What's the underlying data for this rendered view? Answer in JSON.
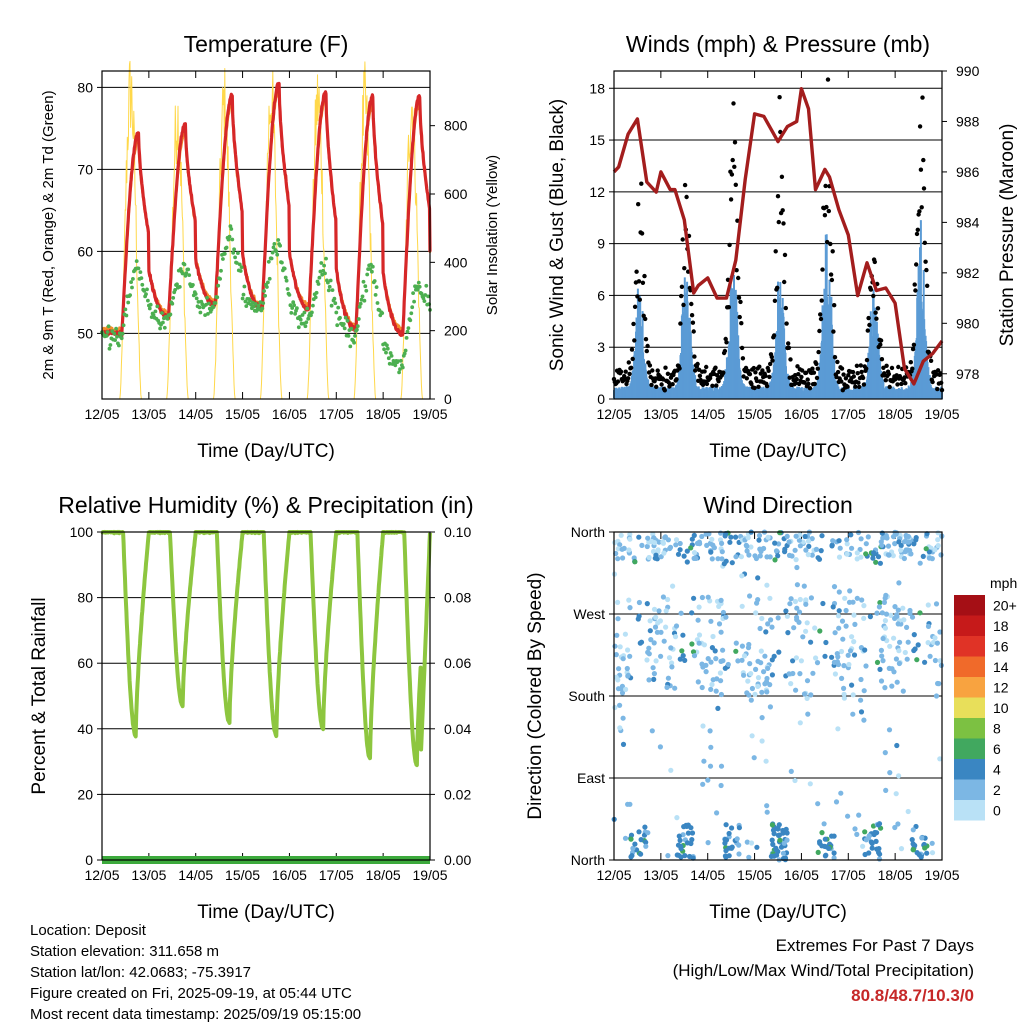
{
  "chart_data": [
    {
      "type": "line",
      "title": "Temperature (F)",
      "xlabel": "Time (Day/UTC)",
      "ylabel": "2m & 9m T (Red, Orange) & 2m Td (Green)",
      "ylabel_right": "Solar Insolation (Yellow)",
      "xticks": [
        "12/05",
        "13/05",
        "14/05",
        "15/05",
        "16/05",
        "17/05",
        "18/05",
        "19/05"
      ],
      "yticks": [
        "50",
        "60",
        "70",
        "80"
      ],
      "yticks_right": [
        "0",
        "200",
        "400",
        "600",
        "800"
      ],
      "ylim": [
        42,
        82
      ],
      "ylim_right": [
        0,
        960
      ],
      "grid": "horizontal",
      "series": [
        {
          "name": "2m T",
          "color": "#d62728",
          "day_highs": [
            74.5,
            75.5,
            79,
            80.5,
            79.5,
            79,
            79
          ],
          "day_lows": [
            49.5,
            52,
            53.5,
            53,
            53,
            50.5,
            50,
            53.5
          ]
        },
        {
          "name": "9m T",
          "color": "#f28e2b",
          "day_highs": [
            73.5,
            74.5,
            78,
            79.5,
            78.5,
            78,
            78
          ],
          "day_lows": [
            50,
            52.5,
            54,
            53.5,
            53.5,
            51,
            50.5,
            54
          ]
        },
        {
          "name": "2m Td",
          "color": "#4caf50",
          "day_highs": [
            58,
            58,
            62,
            61,
            58,
            58,
            56
          ],
          "day_lows": [
            49,
            51.5,
            53,
            53,
            51.5,
            50,
            46,
            52.5
          ]
        },
        {
          "name": "Solar Insolation",
          "color": "#ffd84a",
          "day_peaks": [
            900,
            820,
            860,
            880,
            870,
            860,
            860
          ]
        }
      ]
    },
    {
      "type": "scatter",
      "title": "Winds (mph) & Pressure (mb)",
      "xlabel": "Time (Day/UTC)",
      "ylabel": "Sonic Wind & Gust (Blue, Black)",
      "ylabel_right": "Station Pressure (Maroon)",
      "xticks": [
        "12/05",
        "13/05",
        "14/05",
        "15/05",
        "16/05",
        "17/05",
        "18/05",
        "19/05"
      ],
      "yticks": [
        "0",
        "3",
        "6",
        "9",
        "12",
        "15",
        "18"
      ],
      "yticks_right": [
        "978",
        "980",
        "982",
        "984",
        "986",
        "988",
        "990"
      ],
      "ylim": [
        0,
        19
      ],
      "ylim_right": [
        977,
        990
      ],
      "grid": "horizontal",
      "series": [
        {
          "name": "Sonic Wind",
          "color": "#5b9bd5",
          "day_peaks": [
            6,
            7,
            7.5,
            7.5,
            9,
            6,
            9
          ]
        },
        {
          "name": "Gust",
          "color": "#000000",
          "day_peaks": [
            10,
            12,
            16.5,
            14,
            16,
            8,
            16
          ]
        },
        {
          "name": "Station Pressure",
          "color": "#a31d1d",
          "x": [
            0.0,
            0.1,
            0.3,
            0.5,
            0.7,
            0.9,
            1.0,
            1.2,
            1.3,
            1.5,
            1.7,
            1.8,
            2.0,
            2.2,
            2.4,
            2.6,
            2.8,
            3.0,
            3.2,
            3.5,
            3.7,
            3.9,
            4.0,
            4.15,
            4.3,
            4.5,
            4.6,
            4.8,
            5.0,
            5.2,
            5.4,
            5.6,
            5.8,
            6.0,
            6.2,
            6.4,
            6.6,
            6.8,
            7.0
          ],
          "y": [
            986,
            986.2,
            987.5,
            988.1,
            985.6,
            985.2,
            986.0,
            985.3,
            985.3,
            984.1,
            981.2,
            981.5,
            981.8,
            981.0,
            981.0,
            982.5,
            985.7,
            988.3,
            988.2,
            987.2,
            987.8,
            988.0,
            989.3,
            988.5,
            985.3,
            986.1,
            985.8,
            984.5,
            983.5,
            981.1,
            982.4,
            981.3,
            981.4,
            980.8,
            978.2,
            977.6,
            978.5,
            978.8,
            979.3
          ]
        }
      ]
    },
    {
      "type": "line",
      "title": "Relative Humidity (%) & Precipitation (in)",
      "xlabel": "Time (Day/UTC)",
      "ylabel": "Percent & Total Rainfall",
      "xticks": [
        "12/05",
        "13/05",
        "14/05",
        "15/05",
        "16/05",
        "17/05",
        "18/05",
        "19/05"
      ],
      "yticks": [
        "0",
        "20",
        "40",
        "60",
        "80",
        "100"
      ],
      "yticks_right": [
        "0.00",
        "0.02",
        "0.04",
        "0.06",
        "0.08",
        "0.10"
      ],
      "ylim": [
        0,
        100
      ],
      "ylim_right": [
        0,
        0.1
      ],
      "grid": "horizontal",
      "series": [
        {
          "name": "Relative Humidity",
          "color": "#8dc63f",
          "day_lows": [
            38,
            47,
            42,
            38,
            40,
            31,
            29
          ],
          "daily_high": 100
        },
        {
          "name": "Total Precipitation",
          "color": "#3caa3c",
          "values": [
            0,
            0
          ]
        }
      ]
    },
    {
      "type": "scatter",
      "title": "Wind Direction",
      "xlabel": "Time (Day/UTC)",
      "ylabel": "Direction (Colored By Speed)",
      "xticks": [
        "12/05",
        "13/05",
        "14/05",
        "15/05",
        "16/05",
        "17/05",
        "18/05",
        "19/05"
      ],
      "yticks": [
        "North",
        "East",
        "South",
        "West",
        "North"
      ],
      "ylim": [
        0,
        360
      ],
      "grid": "horizontal",
      "legend": {
        "title": "mph",
        "position": "right",
        "labels": [
          "20+",
          "18",
          "16",
          "14",
          "12",
          "10",
          "8",
          "6",
          "4",
          "2",
          "0"
        ],
        "colors": [
          "#a50f15",
          "#c61a1a",
          "#e03326",
          "#f06a2a",
          "#f8a340",
          "#e8df5a",
          "#7cc142",
          "#41a85f",
          "#3a86c2",
          "#7cb7e4",
          "#b9e1f6"
        ]
      }
    }
  ],
  "footer": {
    "location": "Location: Deposit",
    "elevation": "Station elevation: 311.658 m",
    "latlon": "Station lat/lon: 42.0683; -75.3917",
    "created": "Figure created on Fri, 2025-09-19, at 05:44 UTC",
    "recent": "Most recent data timestamp: 2025/09/19 05:15:00"
  },
  "extremes": {
    "title": "Extremes For Past 7 Days",
    "subtitle": "(High/Low/Max Wind/Total Precipitation)",
    "values": "80.8/48.7/10.3/0"
  }
}
